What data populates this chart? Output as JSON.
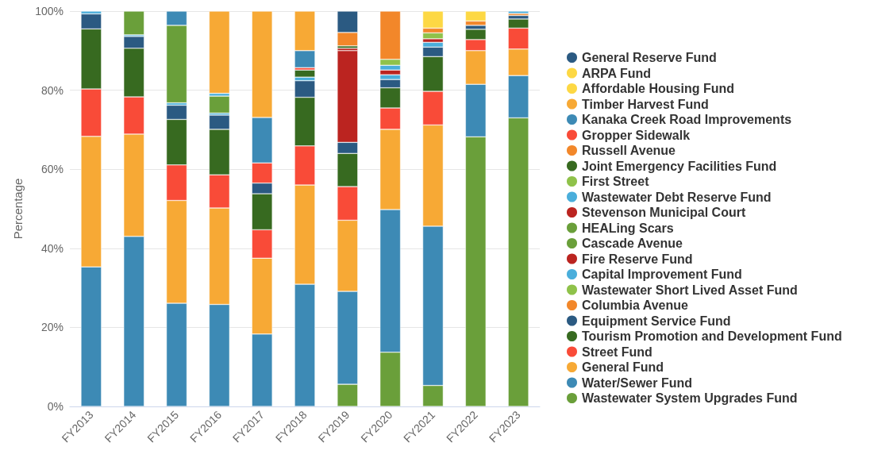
{
  "chart_data": {
    "type": "bar",
    "stacked": true,
    "ylabel": "Percentage",
    "categories": [
      "FY2013",
      "FY2014",
      "FY2015",
      "FY2016",
      "FY2017",
      "FY2018",
      "FY2019",
      "FY2020",
      "FY2021",
      "FY2022",
      "FY2023"
    ],
    "ylim": [
      0,
      100
    ],
    "yticks": [
      {
        "value": 0,
        "label": "0%"
      },
      {
        "value": 20,
        "label": "20%"
      },
      {
        "value": 40,
        "label": "40%"
      },
      {
        "value": 60,
        "label": "60%"
      },
      {
        "value": 80,
        "label": "80%"
      },
      {
        "value": 100,
        "label": "100%"
      }
    ],
    "grid": "y",
    "legend": "right",
    "marker": "circle",
    "series": [
      {
        "name": "Wastewater System Upgrades Fund",
        "color": "#6a9f3a",
        "values": [
          null,
          null,
          null,
          null,
          null,
          null,
          5.6,
          13.7,
          5.3,
          68.2,
          73.0
        ]
      },
      {
        "name": "Water/Sewer Fund",
        "color": "#3d8ab5",
        "values": [
          35.3,
          43.0,
          26.1,
          25.8,
          18.3,
          30.9,
          23.5,
          36.1,
          40.3,
          13.3,
          10.7
        ]
      },
      {
        "name": "General Fund",
        "color": "#f7a935",
        "values": [
          33.0,
          25.9,
          26.0,
          24.4,
          19.2,
          25.1,
          18.0,
          20.3,
          25.6,
          8.5,
          6.7
        ]
      },
      {
        "name": "Street Fund",
        "color": "#f94b38",
        "values": [
          12.0,
          9.4,
          9.0,
          8.4,
          7.2,
          9.9,
          8.5,
          5.4,
          8.5,
          2.8,
          5.3
        ]
      },
      {
        "name": "Tourism Promotion and Development Fund",
        "color": "#376a20",
        "values": [
          15.2,
          12.3,
          11.5,
          11.5,
          9.1,
          12.3,
          8.4,
          5.1,
          8.8,
          2.6,
          2.3
        ]
      },
      {
        "name": "Equipment Service Fund",
        "color": "#2b5a82",
        "values": [
          3.8,
          3.0,
          3.6,
          3.6,
          2.7,
          4.2,
          2.8,
          2.1,
          2.4,
          1.0,
          0.9
        ]
      },
      {
        "name": "Columbia Avenue",
        "color": "#f2872a",
        "values": [
          null,
          null,
          null,
          null,
          null,
          null,
          null,
          null,
          null,
          1.1,
          0.5
        ]
      },
      {
        "name": "Wastewater Short Lived Asset Fund",
        "color": "#8fc24a",
        "values": [
          null,
          null,
          null,
          null,
          null,
          null,
          null,
          null,
          null,
          null,
          null
        ]
      },
      {
        "name": "Capital Improvement Fund",
        "color": "#4aaedb",
        "values": [
          0.7,
          0.4,
          0.6,
          0.5,
          null,
          0.9,
          null,
          1.2,
          1.2,
          null,
          0.6
        ]
      },
      {
        "name": "Fire Reserve Fund",
        "color": "#bb2420",
        "values": [
          null,
          null,
          null,
          null,
          null,
          null,
          23.2,
          1.2,
          0.9,
          null,
          null
        ]
      },
      {
        "name": "Cascade Avenue",
        "color": "#6a9f3a",
        "values": [
          null,
          6.0,
          19.6,
          4.3,
          null,
          null,
          null,
          null,
          null,
          null,
          null
        ]
      },
      {
        "name": "HEALing Scars",
        "color": "#6a9f3a",
        "values": [
          null,
          null,
          null,
          null,
          null,
          null,
          null,
          null,
          null,
          null,
          null
        ]
      },
      {
        "name": "Stevenson Municipal Court",
        "color": "#bb2420",
        "values": [
          null,
          null,
          null,
          null,
          null,
          null,
          0.6,
          null,
          null,
          null,
          null
        ]
      },
      {
        "name": "Wastewater Debt Reserve Fund",
        "color": "#4aaedb",
        "values": [
          null,
          null,
          null,
          0.7,
          null,
          null,
          null,
          1.2,
          null,
          null,
          null
        ]
      },
      {
        "name": "First Street",
        "color": "#8fc24a",
        "values": [
          null,
          null,
          null,
          null,
          null,
          null,
          null,
          1.5,
          1.5,
          null,
          null
        ]
      },
      {
        "name": "Joint Emergency Facilities Fund",
        "color": "#376a20",
        "values": [
          null,
          null,
          null,
          null,
          null,
          1.8,
          0.6,
          null,
          null,
          null,
          null
        ]
      },
      {
        "name": "Russell Avenue",
        "color": "#f2872a",
        "values": [
          null,
          null,
          null,
          null,
          null,
          null,
          3.4,
          12.2,
          1.2,
          null,
          null
        ]
      },
      {
        "name": "Gropper Sidewalk",
        "color": "#f94b38",
        "values": [
          null,
          null,
          null,
          null,
          5.1,
          0.6,
          null,
          null,
          null,
          null,
          null
        ]
      },
      {
        "name": "Kanaka Creek Road Improvements",
        "color": "#3d8ab5",
        "values": [
          null,
          null,
          3.6,
          null,
          11.5,
          4.3,
          null,
          null,
          null,
          null,
          null
        ]
      },
      {
        "name": "Timber Harvest Fund",
        "color": "#f7a935",
        "values": [
          null,
          null,
          null,
          20.8,
          26.9,
          10.0,
          null,
          null,
          null,
          null,
          null
        ]
      },
      {
        "name": "Affordable Housing Fund",
        "color": "#fdd844",
        "values": [
          null,
          null,
          null,
          null,
          null,
          null,
          null,
          null,
          null,
          2.5,
          null
        ]
      },
      {
        "name": "ARPA Fund",
        "color": "#fdd844",
        "values": [
          null,
          null,
          null,
          null,
          null,
          null,
          null,
          null,
          4.3,
          null,
          null
        ]
      },
      {
        "name": "General Reserve Fund",
        "color": "#2b5a82",
        "values": [
          null,
          null,
          null,
          null,
          null,
          null,
          5.4,
          null,
          null,
          null,
          null
        ]
      }
    ]
  }
}
